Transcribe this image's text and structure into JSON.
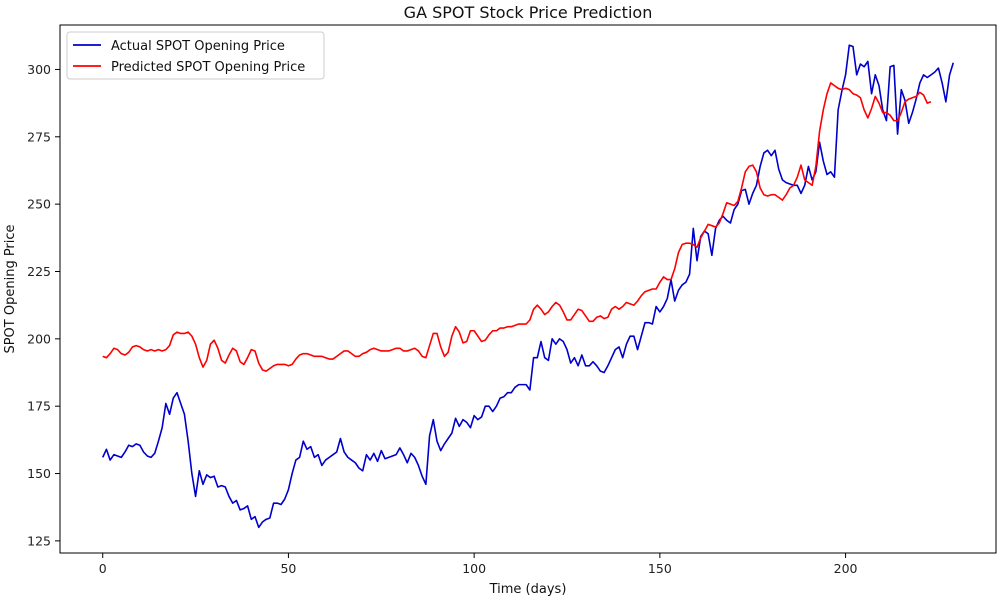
{
  "chart_data": {
    "type": "line",
    "title": "GA SPOT Stock Price Prediction",
    "xlabel": "Time (days)",
    "ylabel": "SPOT Opening Price",
    "xlim": [
      -11.5,
      240.5
    ],
    "ylim": [
      120.5,
      316.5
    ],
    "x_ticks": [
      0,
      50,
      100,
      150,
      200
    ],
    "y_ticks": [
      125,
      150,
      175,
      200,
      225,
      250,
      275,
      300
    ],
    "grid": false,
    "legend_position": "top-left",
    "series": [
      {
        "name": "Actual SPOT Opening Price",
        "color": "#0000cc",
        "x_start": 0,
        "values": [
          156,
          159,
          155,
          157,
          156.5,
          156,
          158,
          160.5,
          160,
          161,
          160.5,
          158,
          156.5,
          156,
          157.5,
          162,
          167,
          176,
          172,
          178,
          180,
          176,
          172,
          162,
          150,
          141.5,
          151,
          146,
          149.5,
          148.5,
          149,
          145,
          145.5,
          145,
          141.5,
          139,
          140,
          136.5,
          137,
          138,
          133,
          134,
          130,
          132,
          133,
          133.5,
          139,
          139,
          138.5,
          140.5,
          144,
          150,
          155,
          156,
          162,
          159,
          160,
          156,
          157,
          153,
          155,
          156,
          157,
          158,
          163,
          158,
          156,
          155,
          154,
          152,
          151,
          157,
          155,
          157.5,
          154.5,
          158.5,
          155.5,
          156,
          156.5,
          157,
          159.5,
          157,
          154,
          157.5,
          156,
          153,
          149,
          146,
          164,
          170,
          162,
          158.5,
          161,
          163,
          165,
          170.5,
          167.5,
          170,
          169,
          167,
          171.5,
          170,
          171,
          175,
          175,
          173,
          175,
          178,
          178.5,
          180,
          180,
          182,
          183,
          183,
          183,
          181,
          193,
          193,
          199,
          193,
          192,
          200,
          198,
          200,
          199,
          196,
          191,
          193,
          190,
          194,
          190,
          190,
          191.5,
          190,
          188,
          187.5,
          190,
          193,
          196,
          197,
          193,
          198,
          201,
          201,
          196,
          201,
          206,
          206,
          205.5,
          212,
          210,
          212,
          215,
          222,
          214,
          218,
          220,
          221,
          224,
          241,
          229,
          238,
          240,
          239,
          231,
          241,
          244,
          245.5,
          244,
          243,
          248,
          250,
          255,
          255.5,
          250,
          254,
          257,
          264,
          269,
          270,
          268,
          270,
          263,
          259,
          258,
          257.5,
          257,
          257,
          254,
          257,
          264,
          259,
          262,
          273,
          266,
          261,
          262,
          260,
          285,
          292,
          298,
          309,
          308.5,
          298,
          302,
          301,
          303,
          291,
          298,
          294,
          285,
          281,
          301,
          301.5,
          276,
          292.5,
          288.5,
          280,
          284,
          289,
          295,
          298,
          297,
          298,
          299,
          300.5,
          295,
          288,
          298,
          302.5
        ]
      },
      {
        "name": "Predicted SPOT Opening Price",
        "color": "#ff0000",
        "x_start": 0,
        "values": [
          193.5,
          193,
          194.5,
          196.5,
          196,
          194.5,
          194,
          195,
          197,
          197.5,
          197,
          196,
          195.5,
          196,
          195.5,
          196,
          195.5,
          196,
          197.5,
          201.5,
          202.5,
          202,
          202,
          202.5,
          201,
          198,
          193,
          189.5,
          192,
          198,
          199.5,
          196.5,
          192,
          191,
          194,
          196.5,
          195.5,
          191.5,
          190.5,
          193,
          196,
          195.5,
          191,
          188.5,
          188,
          189,
          190,
          190.5,
          190.5,
          190.5,
          190,
          190.5,
          192.5,
          194,
          194.5,
          194.5,
          194,
          193.5,
          193.5,
          193.5,
          193,
          192.5,
          192.5,
          193.5,
          194.5,
          195.5,
          195.5,
          194.5,
          193.5,
          193.5,
          194.5,
          195,
          196,
          196.5,
          196,
          195.5,
          195.5,
          195.5,
          196,
          196.5,
          196.5,
          195.5,
          195.5,
          196,
          196.5,
          195.5,
          193.5,
          193,
          197.5,
          202,
          202,
          197,
          193.5,
          195,
          201,
          204.5,
          202.5,
          198.5,
          199,
          203,
          203,
          201,
          199,
          199.5,
          201.5,
          203,
          203,
          204,
          204,
          204.5,
          204.5,
          205,
          205.5,
          205.5,
          205.5,
          207,
          211,
          212.5,
          211,
          209,
          210,
          212,
          213.5,
          212.5,
          210,
          207,
          207,
          209,
          211,
          210.5,
          208.5,
          206.5,
          206.5,
          208,
          208.5,
          207.5,
          208,
          211,
          212,
          211,
          212,
          213.5,
          213,
          212.5,
          214,
          216,
          217.5,
          218,
          218.5,
          218.5,
          221,
          223,
          222,
          222,
          226,
          232,
          235,
          235.5,
          235.5,
          235,
          234,
          237.5,
          240,
          242.5,
          242,
          241.5,
          243,
          246.5,
          250.5,
          250,
          249.5,
          251,
          256,
          262,
          264,
          264.5,
          262,
          256,
          253.5,
          253,
          253.5,
          253.5,
          252.5,
          251.5,
          253.5,
          256,
          257,
          260,
          264.5,
          259,
          258,
          257,
          264,
          277,
          285,
          291,
          295,
          294,
          293,
          292.5,
          293,
          292.5,
          291,
          290.5,
          289.5,
          285,
          282,
          285.5,
          290,
          287.5,
          284,
          284,
          283,
          281,
          281,
          284,
          288,
          289,
          289.5,
          290,
          291.5,
          290.5,
          287.5,
          288
        ]
      }
    ]
  }
}
